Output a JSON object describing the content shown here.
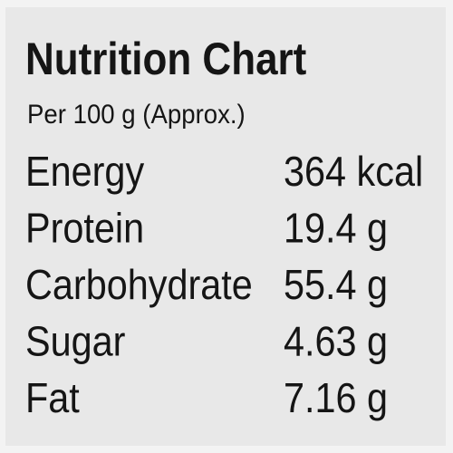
{
  "header": {
    "title": "Nutrition Chart",
    "subtitle": "Per 100 g (Approx.)"
  },
  "table": {
    "rows": [
      [
        "Energy",
        "364 kcal"
      ],
      [
        "Protein",
        "19.4 g"
      ],
      [
        "Carbohydrate",
        "55.4 g"
      ],
      [
        "Sugar",
        "4.63 g"
      ],
      [
        "Fat",
        "7.16 g"
      ]
    ]
  }
}
